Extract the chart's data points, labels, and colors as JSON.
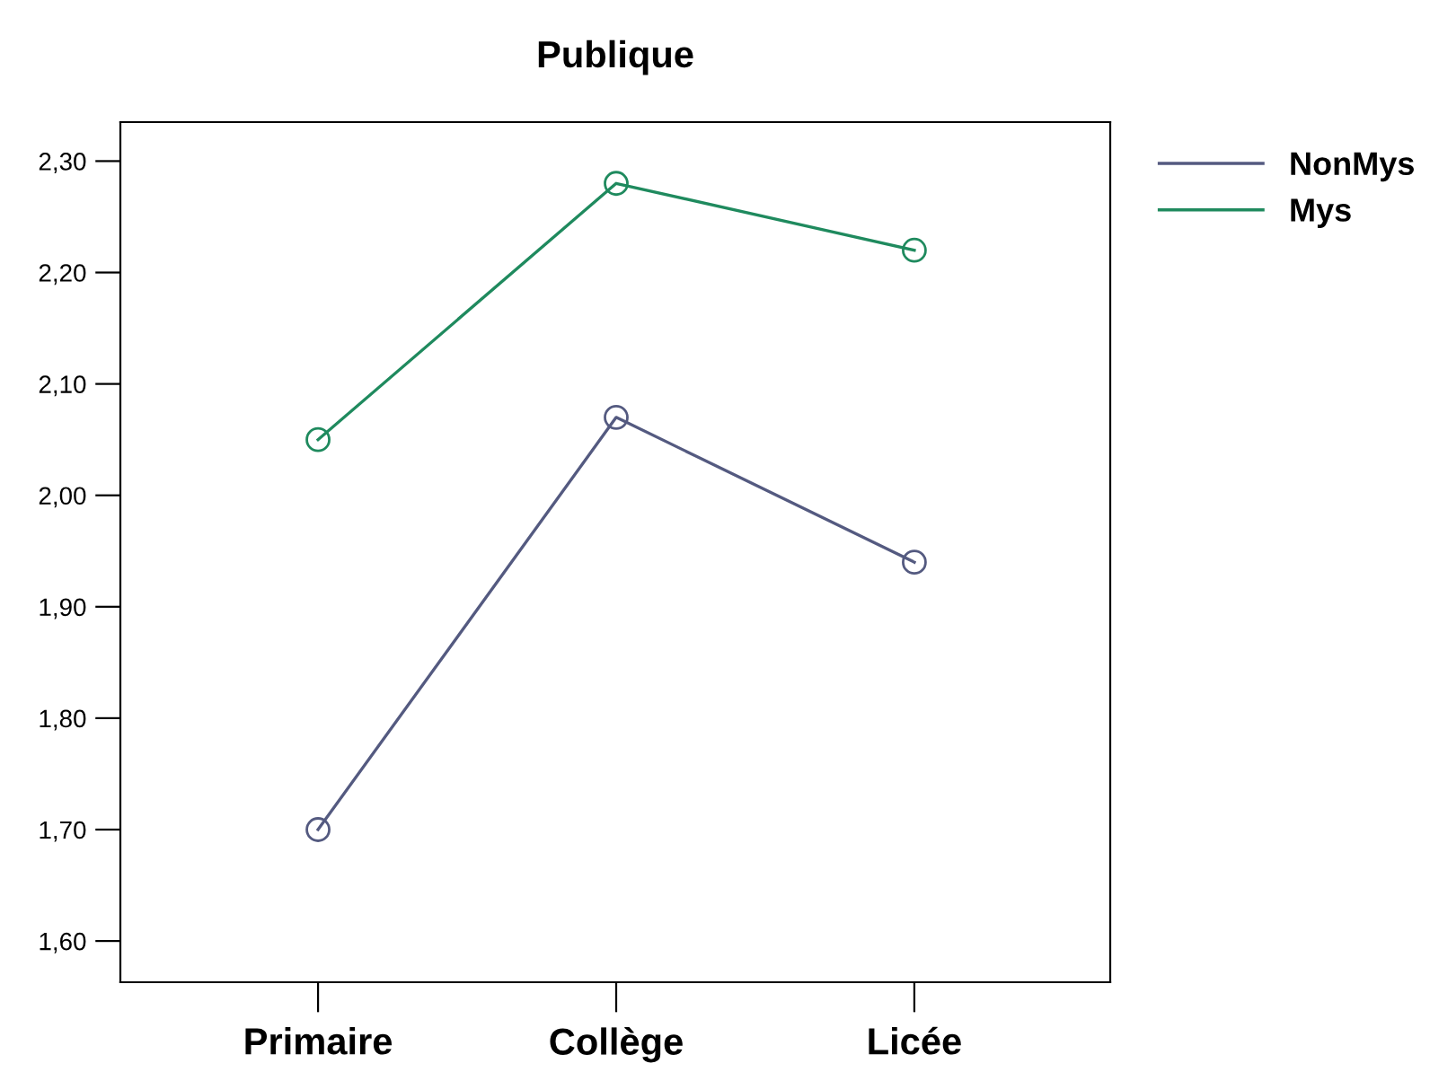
{
  "chart_data": {
    "type": "line",
    "title": "Publique",
    "categories": [
      "Primaire",
      "Collège",
      "Licée"
    ],
    "series": [
      {
        "name": "NonMys",
        "color": "#545a80",
        "values": [
          1.7,
          2.07,
          1.94
        ]
      },
      {
        "name": "Mys",
        "color": "#1f8a5e",
        "values": [
          2.05,
          2.28,
          2.22
        ]
      }
    ],
    "ylim": [
      1.563,
      2.335
    ],
    "yticks": [
      {
        "value": 1.6,
        "label": "1,60"
      },
      {
        "value": 1.7,
        "label": "1,70"
      },
      {
        "value": 1.8,
        "label": "1,80"
      },
      {
        "value": 1.9,
        "label": "1,90"
      },
      {
        "value": 2.0,
        "label": "2,00"
      },
      {
        "value": 2.1,
        "label": "2,10"
      },
      {
        "value": 2.2,
        "label": "2,20"
      },
      {
        "value": 2.3,
        "label": "2,30"
      }
    ],
    "marker": "circle",
    "line_style": "solid",
    "grid": false,
    "legend": "top right"
  }
}
